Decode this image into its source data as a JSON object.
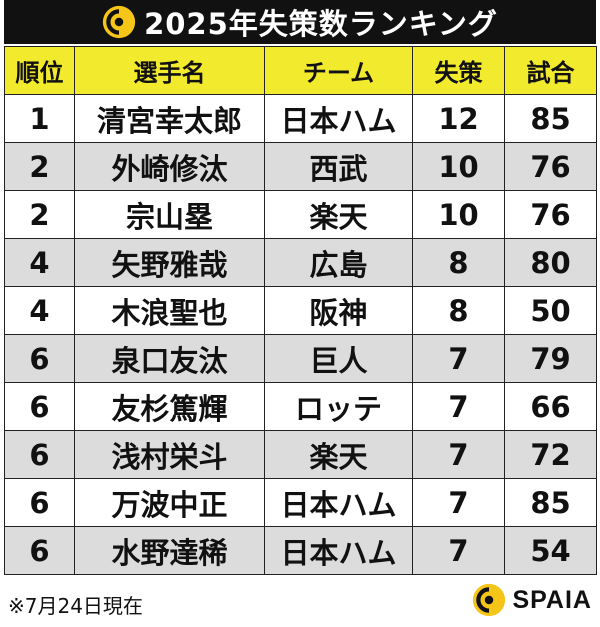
{
  "title": "2025年失策数ランキング",
  "colors": {
    "header_bg": "#f2ea2c",
    "title_bg": "#111111",
    "stripe": "#dcdcdc",
    "logo_gold": "#f5c518"
  },
  "icons": {
    "title": "spaia-logo-icon",
    "brand": "spaia-logo-icon"
  },
  "columns": [
    "順位",
    "選手名",
    "チーム",
    "失策",
    "試合"
  ],
  "rows": [
    [
      "1",
      "清宮幸太郎",
      "日本ハム",
      "12",
      "85"
    ],
    [
      "2",
      "外崎修汰",
      "西武",
      "10",
      "76"
    ],
    [
      "2",
      "宗山塁",
      "楽天",
      "10",
      "76"
    ],
    [
      "4",
      "矢野雅哉",
      "広島",
      "8",
      "80"
    ],
    [
      "4",
      "木浪聖也",
      "阪神",
      "8",
      "50"
    ],
    [
      "6",
      "泉口友汰",
      "巨人",
      "7",
      "79"
    ],
    [
      "6",
      "友杉篤輝",
      "ロッテ",
      "7",
      "66"
    ],
    [
      "6",
      "浅村栄斗",
      "楽天",
      "7",
      "72"
    ],
    [
      "6",
      "万波中正",
      "日本ハム",
      "7",
      "85"
    ],
    [
      "6",
      "水野達稀",
      "日本ハム",
      "7",
      "54"
    ]
  ],
  "footnote": "※7月24日現在",
  "brand": "SPAIA"
}
